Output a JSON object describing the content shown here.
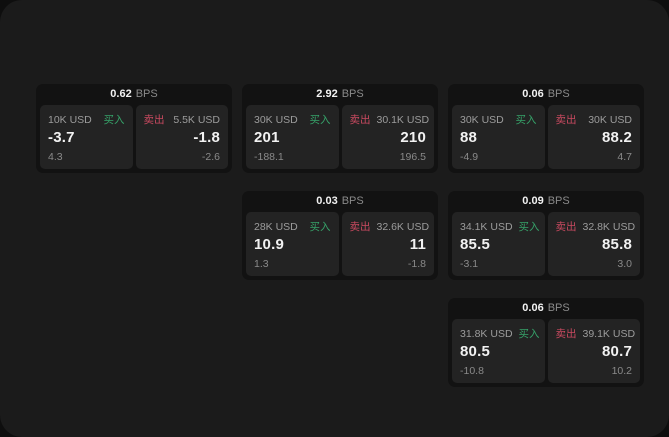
{
  "labels": {
    "bps_unit": "BPS",
    "buy": "买入",
    "sell": "卖出"
  },
  "colors": {
    "outer_bg": "#0e0e0e",
    "page_bg": "#1b1b1b",
    "card_bg": "#121212",
    "panel_bg": "#232323",
    "text_primary": "#f2f2f2",
    "text_secondary": "#9c9c9c",
    "buy_green": "#36a269",
    "sell_red": "#c94a60"
  },
  "cards": [
    {
      "bps": "0.62",
      "buy": {
        "amount": "10K USD",
        "price": "-3.7",
        "sub": "4.3"
      },
      "sell": {
        "amount": "5.5K USD",
        "price": "-1.8",
        "sub": "-2.6"
      }
    },
    {
      "bps": "2.92",
      "buy": {
        "amount": "30K USD",
        "price": "201",
        "sub": "-188.1"
      },
      "sell": {
        "amount": "30.1K USD",
        "price": "210",
        "sub": "196.5"
      }
    },
    {
      "bps": "0.06",
      "buy": {
        "amount": "30K USD",
        "price": "88",
        "sub": "-4.9"
      },
      "sell": {
        "amount": "30K USD",
        "price": "88.2",
        "sub": "4.7"
      }
    },
    {
      "bps": "0.03",
      "buy": {
        "amount": "28K USD",
        "price": "10.9",
        "sub": "1.3"
      },
      "sell": {
        "amount": "32.6K USD",
        "price": "11",
        "sub": "-1.8"
      }
    },
    {
      "bps": "0.09",
      "buy": {
        "amount": "34.1K USD",
        "price": "85.5",
        "sub": "-3.1"
      },
      "sell": {
        "amount": "32.8K USD",
        "price": "85.8",
        "sub": "3.0"
      }
    },
    {
      "bps": "0.06",
      "buy": {
        "amount": "31.8K USD",
        "price": "80.5",
        "sub": "-10.8"
      },
      "sell": {
        "amount": "39.1K USD",
        "price": "80.7",
        "sub": "10.2"
      }
    }
  ]
}
